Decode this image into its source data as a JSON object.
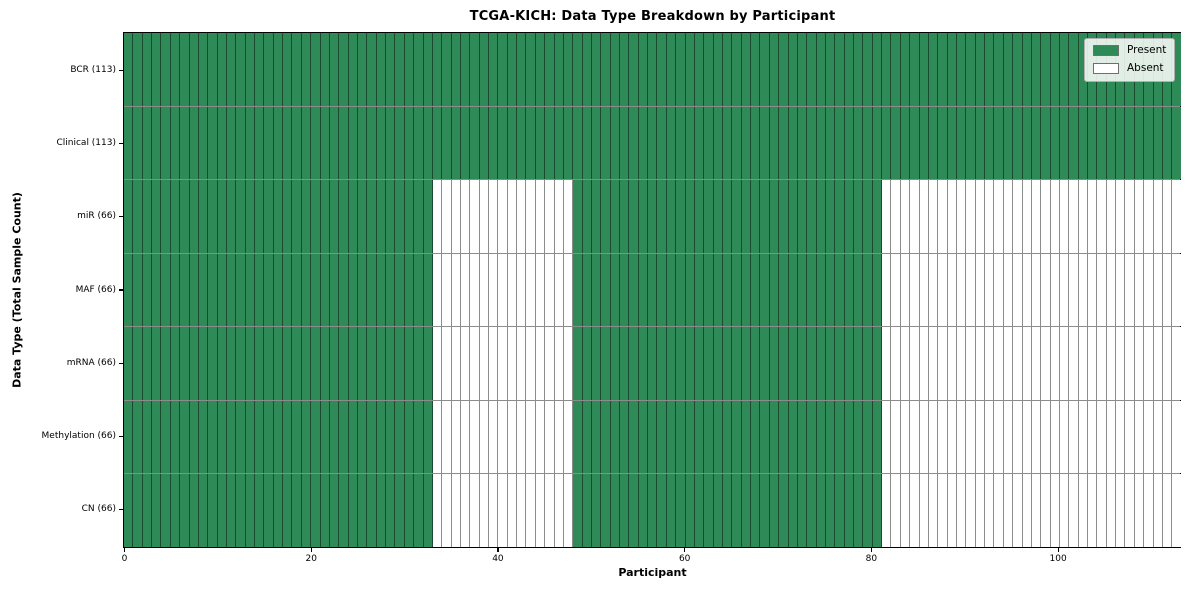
{
  "figure": {
    "background": "#ffffff"
  },
  "chart_data": {
    "type": "heatmap",
    "title": "TCGA-KICH: Data Type Breakdown by Participant",
    "xlabel": "Participant",
    "ylabel": "Data Type (Total Sample Count)",
    "x_range": [
      0,
      113
    ],
    "x_ticks": [
      0,
      20,
      40,
      60,
      80,
      100
    ],
    "n_participants": 113,
    "grid": false,
    "legend_position": "upper right",
    "legend_items": [
      {
        "label": "Present",
        "color": "#2e8b57"
      },
      {
        "label": "Absent",
        "color": "#ffffff"
      }
    ],
    "colors": {
      "present": "#2e8b57",
      "absent": "#ffffff",
      "cell_edge": "rgba(0,0,0,0.45)",
      "spine": "#000000"
    },
    "rows": [
      {
        "name": "BCR",
        "label": "BCR (113)",
        "total_samples": 113,
        "present_ranges": [
          [
            0,
            113
          ]
        ]
      },
      {
        "name": "Clinical",
        "label": "Clinical (113)",
        "total_samples": 113,
        "present_ranges": [
          [
            0,
            113
          ]
        ]
      },
      {
        "name": "miR",
        "label": "miR (66)",
        "total_samples": 66,
        "present_ranges": [
          [
            0,
            33
          ],
          [
            48,
            81
          ]
        ]
      },
      {
        "name": "MAF",
        "label": "MAF (66)",
        "total_samples": 66,
        "present_ranges": [
          [
            0,
            33
          ],
          [
            48,
            81
          ]
        ]
      },
      {
        "name": "mRNA",
        "label": "mRNA (66)",
        "total_samples": 66,
        "present_ranges": [
          [
            0,
            33
          ],
          [
            48,
            81
          ]
        ]
      },
      {
        "name": "Methylation",
        "label": "Methylation (66)",
        "total_samples": 66,
        "present_ranges": [
          [
            0,
            33
          ],
          [
            48,
            81
          ]
        ]
      },
      {
        "name": "CN",
        "label": "CN (66)",
        "total_samples": 66,
        "present_ranges": [
          [
            0,
            33
          ],
          [
            48,
            81
          ]
        ]
      }
    ]
  }
}
